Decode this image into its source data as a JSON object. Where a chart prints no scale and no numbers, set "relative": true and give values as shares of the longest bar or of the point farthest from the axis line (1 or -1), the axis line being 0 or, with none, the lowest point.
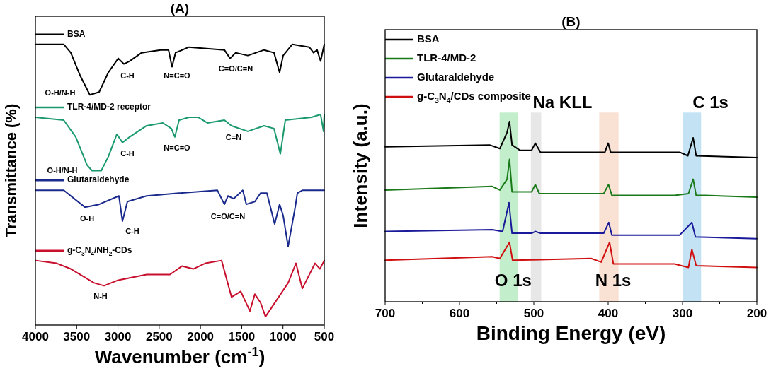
{
  "chart_data": [
    {
      "type": "line",
      "title": "(A)",
      "xlabel": "Wavenumber (cm$^{-1}$)",
      "ylabel": "Transmittance (%)",
      "relative": true,
      "xlim": [
        4000,
        500
      ],
      "xticks": [
        4000,
        3500,
        3000,
        2500,
        2000,
        1500,
        1000,
        500
      ],
      "tick_labels": "x",
      "grid": false,
      "legend": "top left",
      "line_style": "solid",
      "series": [
        {
          "name": "BSA",
          "color": "#000000",
          "x": [
            4000,
            3657,
            3571,
            3460,
            3340,
            3228,
            3116,
            2996,
            2928,
            2859,
            2713,
            2482,
            2387,
            2345,
            2302,
            2139,
            1710,
            1641,
            1573,
            1427,
            1229,
            1109,
            1041,
            998,
            887,
            681,
            630,
            587,
            544,
            500
          ],
          "values": [
            1.0,
            1.0,
            0.97,
            0.89,
            0.82,
            0.83,
            0.9,
            0.95,
            0.93,
            0.94,
            0.97,
            0.98,
            0.98,
            0.92,
            0.97,
            0.99,
            0.98,
            0.95,
            0.97,
            0.96,
            0.98,
            0.97,
            0.9,
            0.96,
            1.0,
            0.99,
            0.97,
            0.98,
            0.94,
            1.0
          ]
        },
        {
          "name": "TLR-4/MD-2 receptor",
          "color": "#1a9a6c",
          "x": [
            4000,
            3657,
            3511,
            3374,
            3314,
            3202,
            3116,
            3013,
            2945,
            2859,
            2653,
            2456,
            2353,
            2310,
            2259,
            2139,
            2027,
            1916,
            1710,
            1624,
            1427,
            1229,
            1109,
            1032,
            972,
            655,
            544,
            509,
            500
          ],
          "values": [
            0.74,
            0.73,
            0.67,
            0.57,
            0.55,
            0.55,
            0.6,
            0.68,
            0.65,
            0.67,
            0.71,
            0.72,
            0.7,
            0.67,
            0.73,
            0.74,
            0.74,
            0.72,
            0.73,
            0.71,
            0.69,
            0.71,
            0.7,
            0.61,
            0.73,
            0.74,
            0.75,
            0.69,
            0.75
          ]
        },
        {
          "name": "Glutaraldehyde",
          "color": "#1a2a8c",
          "x": [
            4000,
            3657,
            3400,
            3228,
            2988,
            2945,
            2885,
            2653,
            2259,
            1795,
            1710,
            1667,
            1598,
            1487,
            1444,
            1341,
            1272,
            1195,
            1101,
            1041,
            998,
            938,
            852,
            826,
            766,
            595,
            500
          ],
          "values": [
            0.48,
            0.48,
            0.42,
            0.43,
            0.46,
            0.37,
            0.44,
            0.46,
            0.47,
            0.48,
            0.43,
            0.46,
            0.45,
            0.48,
            0.43,
            0.44,
            0.47,
            0.47,
            0.36,
            0.43,
            0.39,
            0.28,
            0.42,
            0.47,
            0.48,
            0.48,
            0.48
          ]
        },
        {
          "name": "g-C$_{3}$N$_{4}$/NH$_{2}$-CDs",
          "color": "#c8102e",
          "x": [
            4000,
            3743,
            3571,
            3288,
            3168,
            2996,
            2653,
            2370,
            2224,
            2087,
            1941,
            1744,
            1624,
            1512,
            1401,
            1341,
            1272,
            1212,
            938,
            843,
            766,
            612,
            552,
            500
          ],
          "values": [
            0.23,
            0.22,
            0.2,
            0.15,
            0.14,
            0.16,
            0.18,
            0.18,
            0.21,
            0.2,
            0.22,
            0.23,
            0.1,
            0.12,
            0.05,
            0.11,
            0.08,
            0.03,
            0.15,
            0.22,
            0.13,
            0.22,
            0.2,
            0.23
          ]
        }
      ],
      "annotations": [
        "O-H/N-H",
        "C-H",
        "N=C=O",
        "C=O/C=N",
        "O-H/N-H",
        "C-H",
        "N=C=O",
        "C=N",
        "O-H",
        "C-H",
        "C=O/C=N",
        "N-H"
      ]
    },
    {
      "type": "line",
      "title": "(B)",
      "xlabel": "Binding Energy (eV)",
      "ylabel": "Intensity (a.u.)",
      "relative": true,
      "xlim": [
        700,
        200
      ],
      "xticks": [
        700,
        {
          "value": 650,
          "label": null
        },
        600,
        {
          "value": 550,
          "label": null
        },
        500,
        {
          "value": 450,
          "label": null
        },
        400,
        {
          "value": 350,
          "label": null
        },
        300,
        {
          "value": 250,
          "label": null
        },
        200
      ],
      "tick_labels": "x",
      "grid": false,
      "legend": "top left",
      "line_style": "solid",
      "series": [
        {
          "name": "BSA",
          "color": "#000000",
          "x": [
            700,
            559.4,
            545.7,
            536,
            532.7,
            529.3,
            518.4,
            503,
            498,
            491,
            404.4,
            400,
            396.6,
            303.8,
            292.8,
            285.7,
            281.6,
            200
          ],
          "values": [
            0.86,
            0.87,
            0.85,
            0.94,
            1.0,
            0.87,
            0.84,
            0.84,
            0.88,
            0.83,
            0.83,
            0.88,
            0.83,
            0.83,
            0.81,
            0.91,
            0.81,
            0.8
          ]
        },
        {
          "name": "TLR-4/MD-2",
          "color": "#1a7a1a",
          "x": [
            700,
            556,
            545.7,
            536,
            532.7,
            529.3,
            518.4,
            503,
            498,
            492.5,
            406,
            399.5,
            395,
            310.7,
            292,
            285.7,
            281.6,
            269.6,
            200
          ],
          "values": [
            0.62,
            0.64,
            0.62,
            0.68,
            0.79,
            0.61,
            0.61,
            0.61,
            0.65,
            0.6,
            0.6,
            0.65,
            0.59,
            0.59,
            0.6,
            0.68,
            0.59,
            0.59,
            0.58
          ]
        },
        {
          "name": "Glutaraldehyde",
          "color": "#1a1a9a",
          "x": [
            700,
            556,
            542,
            533.4,
            529.3,
            503,
            498,
            491,
            406,
            399.2,
            395,
            303.8,
            287.4,
            282.6,
            200
          ],
          "values": [
            0.39,
            0.4,
            0.39,
            0.55,
            0.38,
            0.38,
            0.39,
            0.38,
            0.38,
            0.44,
            0.37,
            0.37,
            0.44,
            0.36,
            0.35
          ]
        },
        {
          "name": "g-C$_{3}$N$_{4}$/CDs composite",
          "color": "#d01010",
          "x": [
            700,
            556,
            545.7,
            532.7,
            528.6,
            423,
            409.3,
            398.1,
            393,
            310.7,
            292,
            287.4,
            281.6,
            200
          ],
          "values": [
            0.23,
            0.25,
            0.24,
            0.33,
            0.23,
            0.24,
            0.22,
            0.33,
            0.21,
            0.21,
            0.19,
            0.29,
            0.2,
            0.19
          ]
        }
      ],
      "bands": [
        {
          "axis": "x",
          "from": 546,
          "to": 521,
          "label": "O 1s",
          "color": "#b9ebc3"
        },
        {
          "axis": "x",
          "from": 504,
          "to": 490,
          "label": "Na KLL",
          "color": "#e3e3e3"
        },
        {
          "axis": "x",
          "from": 412,
          "to": 386,
          "label": "N 1s",
          "color": "#f8dccc"
        },
        {
          "axis": "x",
          "from": 300,
          "to": 275,
          "label": "C 1s",
          "color": "#b8def2"
        }
      ]
    }
  ]
}
